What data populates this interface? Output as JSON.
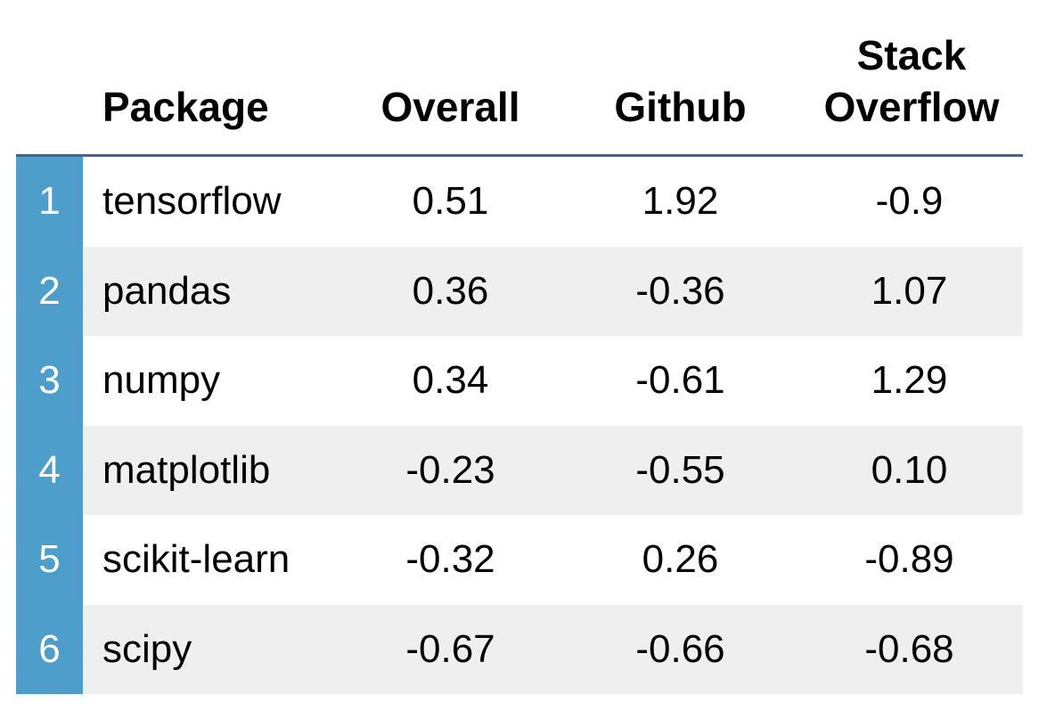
{
  "chart_data": {
    "type": "table",
    "columns": [
      "",
      "Package",
      "Overall",
      "Github",
      "Stack Overflow"
    ],
    "headers": {
      "package": "Package",
      "overall": "Overall",
      "github": "Github",
      "stack_line1": "Stack",
      "stack_line2": "Overflow"
    },
    "rows": [
      {
        "index": "1",
        "package": "tensorflow",
        "overall": "0.51",
        "github": "1.92",
        "stack": "-0.9"
      },
      {
        "index": "2",
        "package": "pandas",
        "overall": "0.36",
        "github": "-0.36",
        "stack": "1.07"
      },
      {
        "index": "3",
        "package": "numpy",
        "overall": "0.34",
        "github": "-0.61",
        "stack": "1.29"
      },
      {
        "index": "4",
        "package": "matplotlib",
        "overall": "-0.23",
        "github": "-0.55",
        "stack": "0.10"
      },
      {
        "index": "5",
        "package": "scikit-learn",
        "overall": "-0.32",
        "github": "0.26",
        "stack": "-0.89"
      },
      {
        "index": "6",
        "package": "scipy",
        "overall": "-0.67",
        "github": "-0.66",
        "stack": "-0.68"
      }
    ]
  },
  "colors": {
    "index_column": "#4e9ecb",
    "header_rule": "#3f6591",
    "alt_row": "#efefef"
  }
}
